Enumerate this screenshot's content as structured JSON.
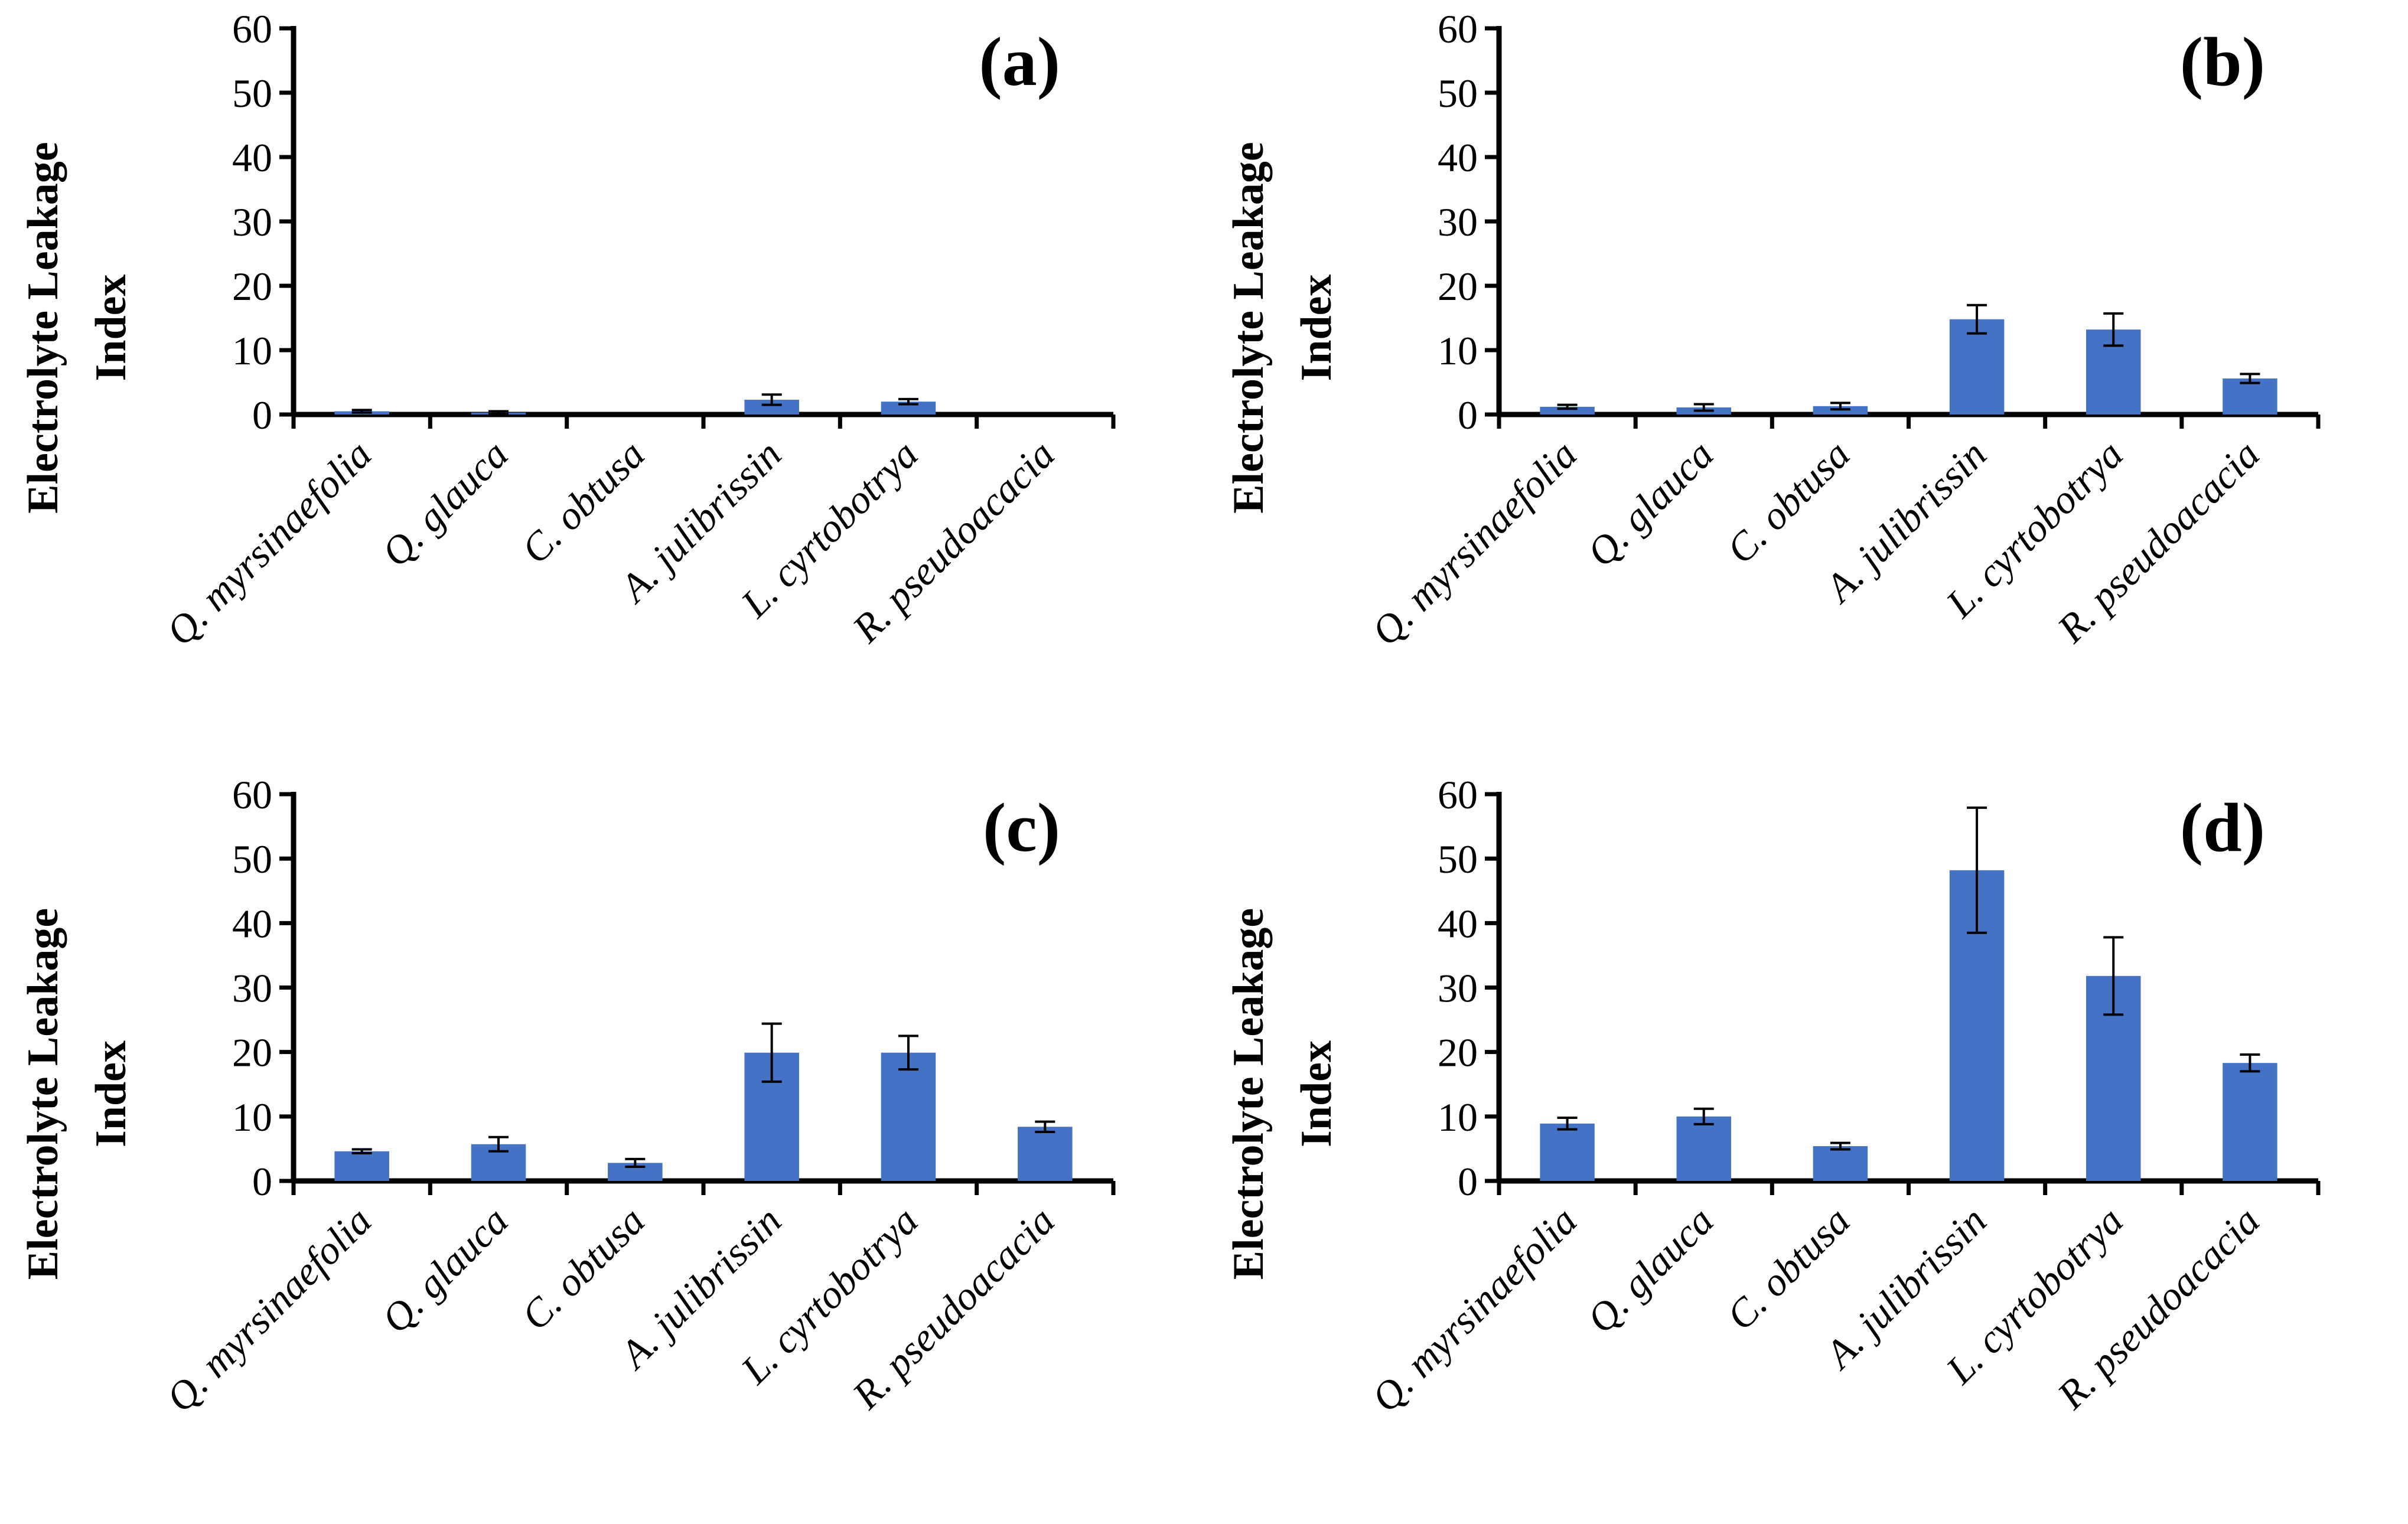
{
  "chart_data": [
    {
      "type": "bar",
      "panel_label": "(a)",
      "ylabel_line1": "Electrolyte Leakage",
      "ylabel_line2": "Index",
      "xlabel": "",
      "ylim": [
        0,
        60
      ],
      "yticks": [
        0,
        10,
        20,
        30,
        40,
        50,
        60
      ],
      "categories": [
        "Q. myrsinaefolia",
        "Q. glauca",
        "C. obtusa",
        "A. julibrissin",
        "L. cyrtobotrya",
        "R. pseudoacacia"
      ],
      "values": [
        0.5,
        0.3,
        0.0,
        2.3,
        2.0,
        0.0
      ],
      "errors": [
        0.2,
        0.2,
        0.0,
        0.8,
        0.4,
        0.0
      ],
      "color": "#4472C4",
      "grid": false
    },
    {
      "type": "bar",
      "panel_label": "(b)",
      "ylabel_line1": "Electrolyte Leakage",
      "ylabel_line2": "Index",
      "xlabel": "",
      "ylim": [
        0,
        60
      ],
      "yticks": [
        0,
        10,
        20,
        30,
        40,
        50,
        60
      ],
      "categories": [
        "Q. myrsinaefolia",
        "Q. glauca",
        "C. obtusa",
        "A. julibrissin",
        "L. cyrtobotrya",
        "R. pseudoacacia"
      ],
      "values": [
        1.2,
        1.1,
        1.3,
        14.8,
        13.2,
        5.6
      ],
      "errors": [
        0.3,
        0.5,
        0.5,
        2.2,
        2.5,
        0.7
      ],
      "color": "#4472C4",
      "grid": false
    },
    {
      "type": "bar",
      "panel_label": "(c)",
      "ylabel_line1": "Electrolyte Leakage",
      "ylabel_line2": "Index",
      "xlabel": "",
      "ylim": [
        0,
        60
      ],
      "yticks": [
        0,
        10,
        20,
        30,
        40,
        50,
        60
      ],
      "categories": [
        "Q. myrsinaefolia",
        "Q. glauca",
        "C. obtusa",
        "A. julibrissin",
        "L. cyrtobotrya",
        "R. pseudoacacia"
      ],
      "values": [
        4.6,
        5.7,
        2.8,
        19.9,
        19.9,
        8.4
      ],
      "errors": [
        0.3,
        1.1,
        0.6,
        4.5,
        2.6,
        0.8
      ],
      "color": "#4472C4",
      "grid": false
    },
    {
      "type": "bar",
      "panel_label": "(d)",
      "ylabel_line1": "Electrolyte Leakage",
      "ylabel_line2": "Index",
      "xlabel": "",
      "ylim": [
        0,
        60
      ],
      "yticks": [
        0,
        10,
        20,
        30,
        40,
        50,
        60
      ],
      "categories": [
        "Q. myrsinaefolia",
        "Q. glauca",
        "C. obtusa",
        "A. julibrissin",
        "L. cyrtobotrya",
        "R. pseudoacacia"
      ],
      "values": [
        8.9,
        10.0,
        5.4,
        48.2,
        31.8,
        18.3
      ],
      "errors": [
        0.9,
        1.2,
        0.5,
        9.7,
        6.0,
        1.3
      ],
      "color": "#4472C4",
      "grid": false
    }
  ]
}
